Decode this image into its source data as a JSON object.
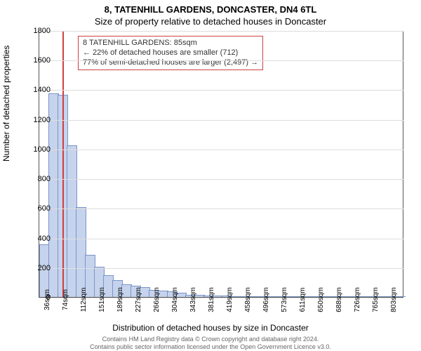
{
  "title": "8, TATENHILL GARDENS, DONCASTER, DN4 6TL",
  "subtitle": "Size of property relative to detached houses in Doncaster",
  "ylabel": "Number of detached properties",
  "xlabel": "Distribution of detached houses by size in Doncaster",
  "footer1": "Contains HM Land Registry data © Crown copyright and database right 2024.",
  "footer2": "Contains public sector information licensed under the Open Government Licence v3.0.",
  "chart": {
    "type": "histogram",
    "ylim": [
      0,
      1800
    ],
    "ytick_step": 200,
    "background_color": "#ffffff",
    "grid_color": "#dddddd",
    "bar_fill": "#c6d3ec",
    "bar_stroke": "#7a94c9",
    "marker_color": "#d04040",
    "annotation_border": "#d04040",
    "annotation_text_color": "#333333",
    "xtick_labels": [
      "36sqm",
      "74sqm",
      "112sqm",
      "151sqm",
      "189sqm",
      "227sqm",
      "266sqm",
      "304sqm",
      "343sqm",
      "381sqm",
      "419sqm",
      "458sqm",
      "496sqm",
      "573sqm",
      "611sqm",
      "650sqm",
      "688sqm",
      "726sqm",
      "765sqm",
      "803sqm"
    ],
    "bars": [
      350,
      1370,
      1360,
      1020,
      600,
      280,
      200,
      140,
      110,
      80,
      70,
      60,
      45,
      40,
      35,
      22,
      10,
      8,
      5,
      4,
      3,
      2,
      2,
      2,
      2,
      1,
      1,
      1,
      1,
      1,
      1,
      1,
      1,
      1,
      1,
      1,
      1,
      1,
      1,
      0
    ],
    "marker_value_sqm": 85,
    "xmin_sqm": 36,
    "xstep_sqm": 19.2,
    "annotation": {
      "line1": "8 TATENHILL GARDENS: 85sqm",
      "line2": "← 22% of detached houses are smaller (712)",
      "line3": "77% of semi-detached houses are larger (2,497) →"
    }
  }
}
